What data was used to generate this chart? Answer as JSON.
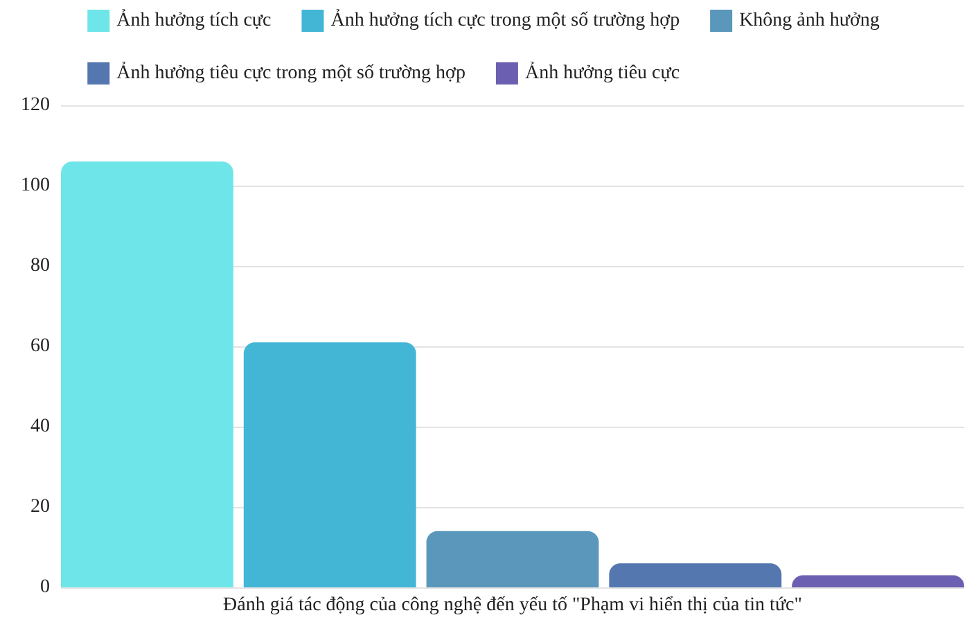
{
  "chart_data": {
    "type": "bar",
    "categories": [
      "Đánh giá tác động của công nghệ đến yếu tố \"Phạm vi hiển thị của tin tức\""
    ],
    "series": [
      {
        "name": "Ảnh hưởng tích cực",
        "color": "#6ee6e9",
        "values": [
          106
        ]
      },
      {
        "name": "Ảnh hưởng tích cực trong một số trường hợp",
        "color": "#43b6d6",
        "values": [
          61
        ]
      },
      {
        "name": "Không ảnh hưởng",
        "color": "#5a97bb",
        "values": [
          14
        ]
      },
      {
        "name": "Ảnh hưởng tiêu cực trong một số trường hợp",
        "color": "#5577b0",
        "values": [
          6
        ]
      },
      {
        "name": "Ảnh hưởng tiêu cực",
        "color": "#6a5fb0",
        "values": [
          3
        ]
      }
    ],
    "ylim": [
      0,
      120
    ],
    "yticks": [
      0,
      20,
      40,
      60,
      80,
      100,
      120
    ],
    "grid": "y",
    "legend": "top"
  }
}
